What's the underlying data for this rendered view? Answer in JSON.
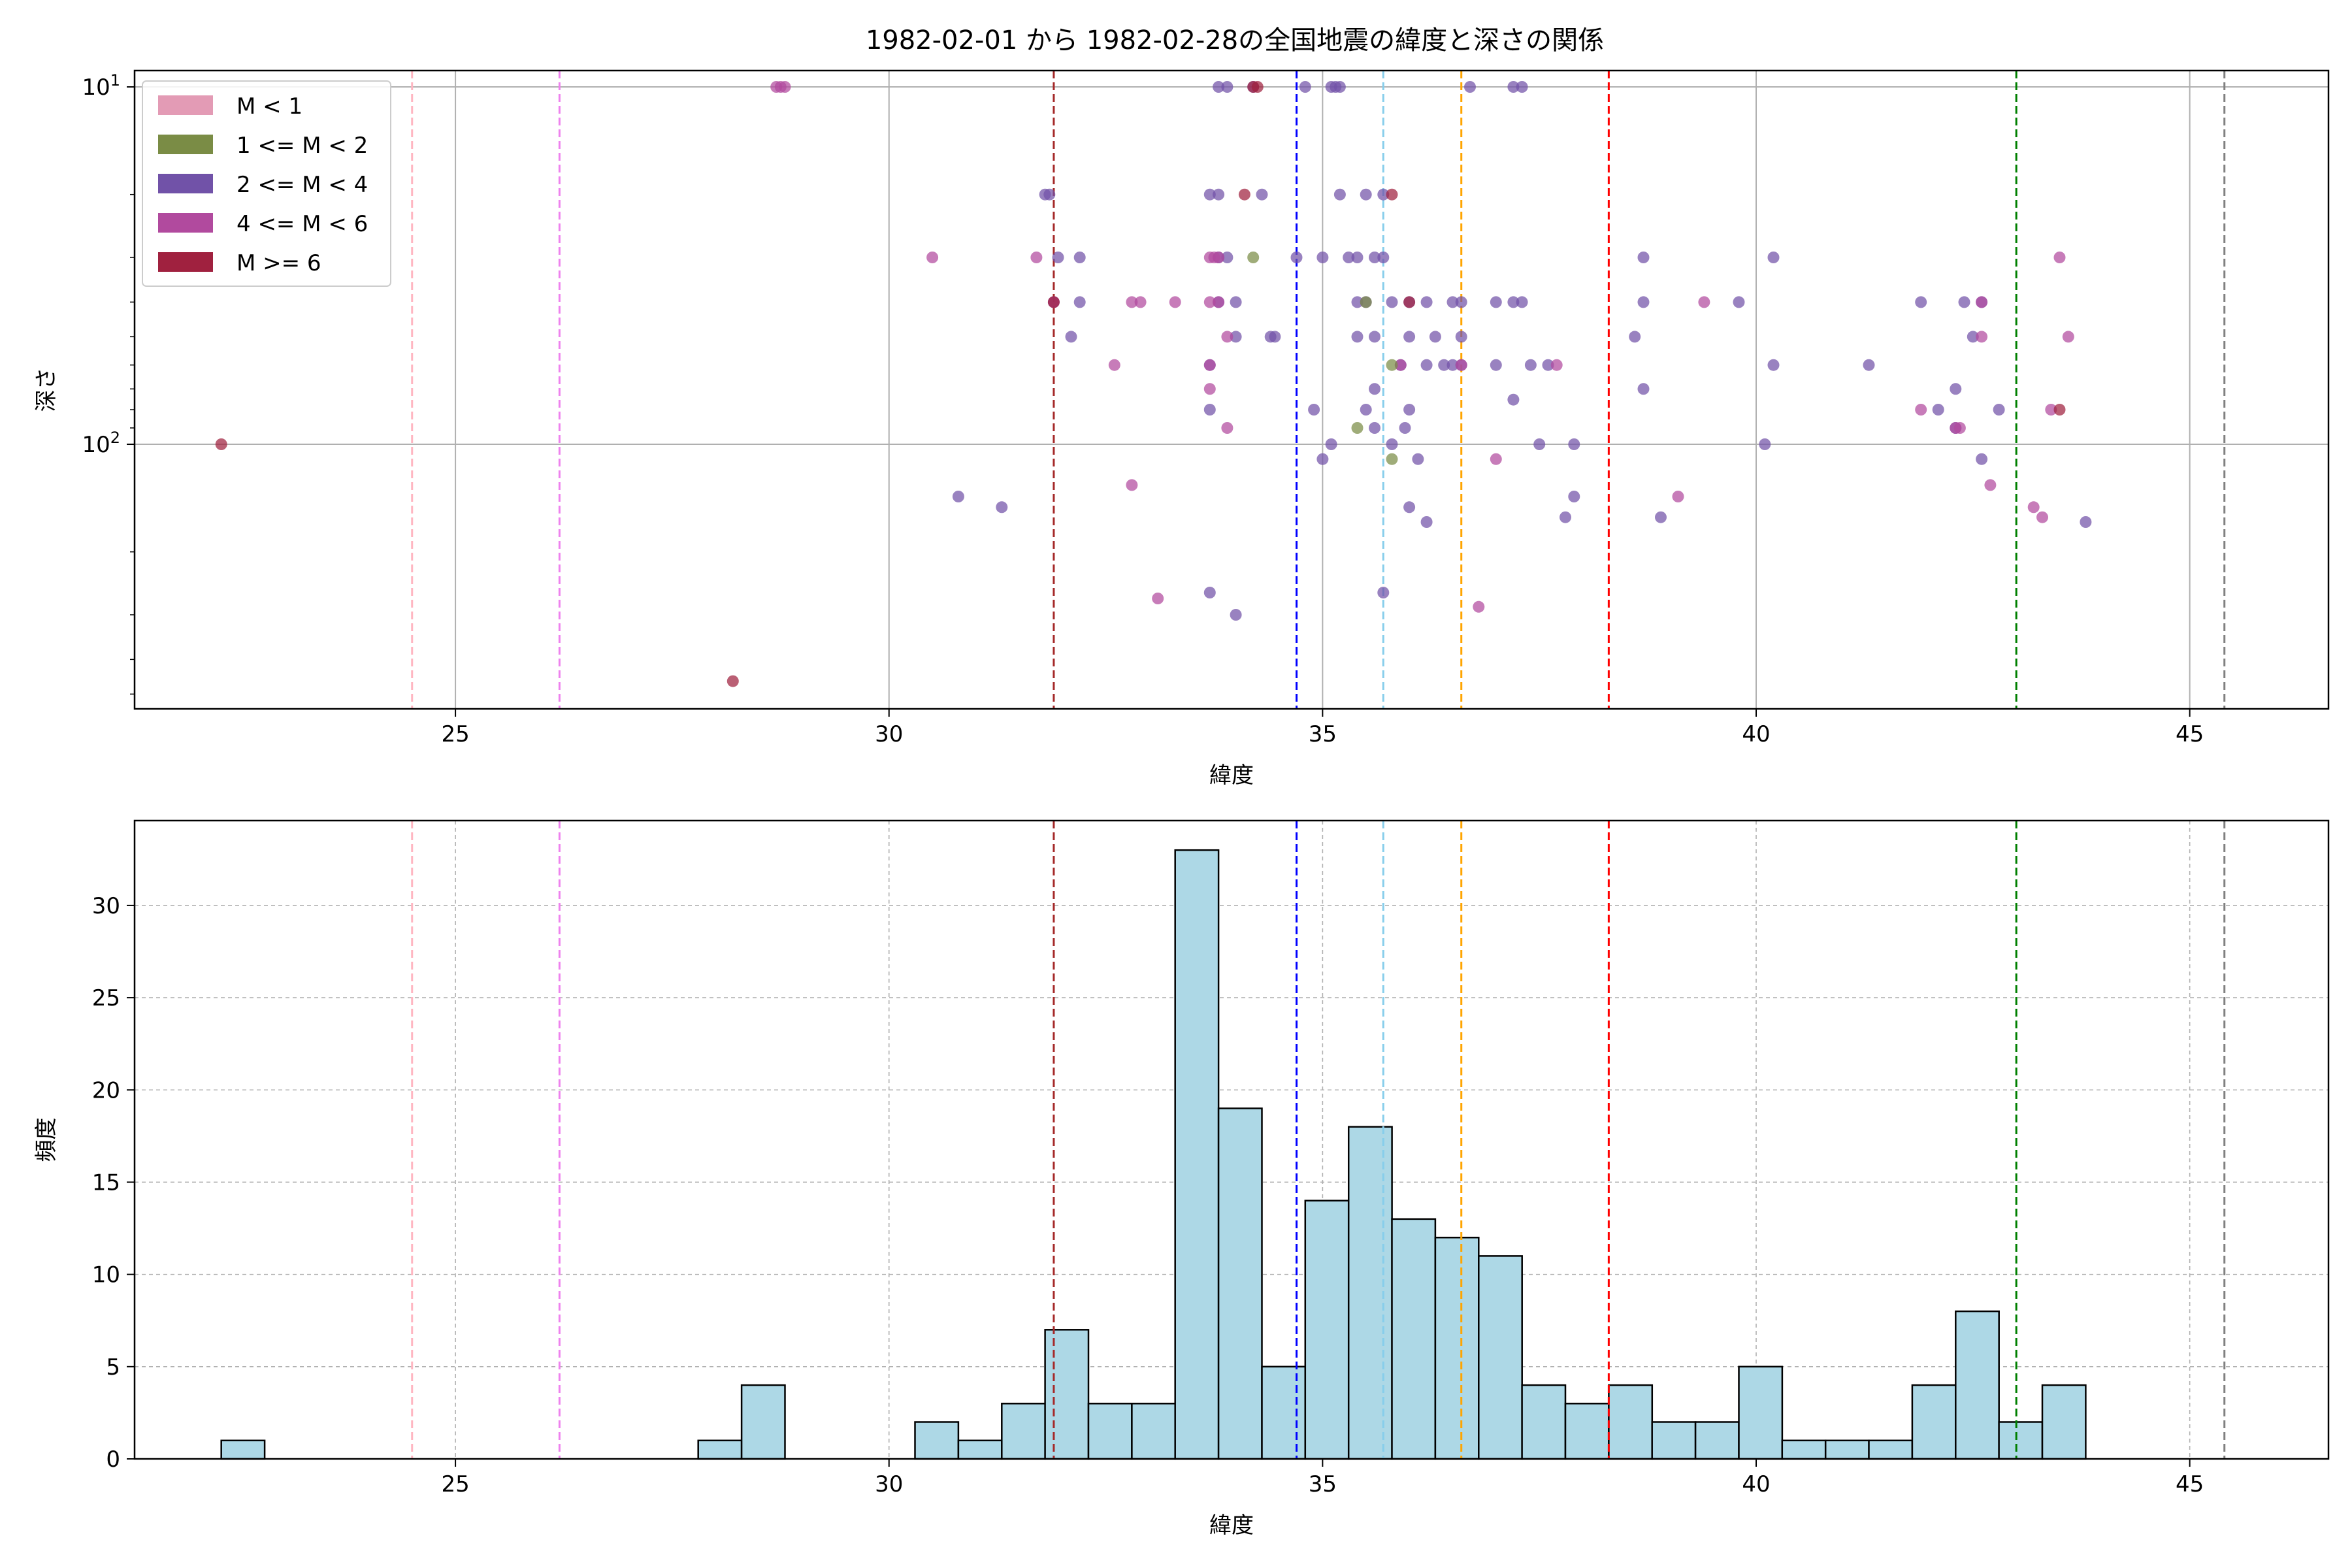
{
  "title": "1982-02-01 から 1982-02-28の全国地震の緯度と深さの関係",
  "legend": {
    "placement": "upper-left",
    "entries": [
      {
        "label": "M < 1",
        "color": "#e39bb5"
      },
      {
        "label": "1 <= M < 2",
        "color": "#7a8c45"
      },
      {
        "label": "2 <= M < 4",
        "color": "#7152a8"
      },
      {
        "label": "4 <= M < 6",
        "color": "#b14a9e"
      },
      {
        "label": "M >= 6",
        "color": "#a0213f"
      }
    ]
  },
  "reference_lines": [
    {
      "x": 24.5,
      "color": "#ffb6c1"
    },
    {
      "x": 26.2,
      "color": "#ee82ee"
    },
    {
      "x": 31.9,
      "color": "#a52a2a"
    },
    {
      "x": 34.7,
      "color": "#0000ff"
    },
    {
      "x": 35.7,
      "color": "#87ceeb"
    },
    {
      "x": 36.6,
      "color": "#ffa500"
    },
    {
      "x": 38.3,
      "color": "#ff0000"
    },
    {
      "x": 43.0,
      "color": "#008000"
    },
    {
      "x": 45.4,
      "color": "#808080"
    }
  ],
  "chart_data": [
    {
      "type": "scatter",
      "title": "1982-02-01 から 1982-02-28の全国地震の緯度と深さの関係",
      "xlabel": "緯度",
      "ylabel": "深さ",
      "xlim": [
        21.3,
        46.6
      ],
      "ylim": [
        550,
        9
      ],
      "yscale": "log",
      "y_inverted": true,
      "x_ticks": [
        25,
        30,
        35,
        40,
        45
      ],
      "y_ticks": [
        {
          "value": 10,
          "label": "10^1"
        },
        {
          "value": 100,
          "label": "10^2"
        }
      ],
      "grid": true,
      "series": [
        {
          "name": "2 <= M < 4",
          "color": "#7152a8",
          "points": [
            [
              33.8,
              10
            ],
            [
              33.9,
              10
            ],
            [
              34.2,
              10
            ],
            [
              34.8,
              10
            ],
            [
              35.1,
              10
            ],
            [
              35.15,
              10
            ],
            [
              35.2,
              10
            ],
            [
              36.7,
              10
            ],
            [
              37.2,
              10
            ],
            [
              37.3,
              10
            ],
            [
              31.8,
              20
            ],
            [
              31.85,
              20
            ],
            [
              33.7,
              20
            ],
            [
              33.8,
              20
            ],
            [
              34.3,
              20
            ],
            [
              35.2,
              20
            ],
            [
              35.5,
              20
            ],
            [
              35.7,
              20
            ],
            [
              31.95,
              30
            ],
            [
              32.2,
              30
            ],
            [
              33.8,
              30
            ],
            [
              33.9,
              30
            ],
            [
              34.7,
              30
            ],
            [
              35.0,
              30
            ],
            [
              35.3,
              30
            ],
            [
              35.4,
              30
            ],
            [
              35.6,
              30
            ],
            [
              35.7,
              30
            ],
            [
              38.7,
              30
            ],
            [
              40.2,
              30
            ],
            [
              31.9,
              40
            ],
            [
              32.2,
              40
            ],
            [
              33.8,
              40
            ],
            [
              34.0,
              40
            ],
            [
              35.4,
              40
            ],
            [
              35.5,
              40
            ],
            [
              35.8,
              40
            ],
            [
              36.0,
              40
            ],
            [
              36.2,
              40
            ],
            [
              36.5,
              40
            ],
            [
              36.6,
              40
            ],
            [
              37.0,
              40
            ],
            [
              37.2,
              40
            ],
            [
              37.3,
              40
            ],
            [
              38.7,
              40
            ],
            [
              39.8,
              40
            ],
            [
              41.9,
              40
            ],
            [
              42.4,
              40
            ],
            [
              42.6,
              40
            ],
            [
              32.1,
              50
            ],
            [
              34.0,
              50
            ],
            [
              34.4,
              50
            ],
            [
              34.45,
              50
            ],
            [
              35.4,
              50
            ],
            [
              35.6,
              50
            ],
            [
              36.0,
              50
            ],
            [
              36.3,
              50
            ],
            [
              36.6,
              50
            ],
            [
              38.6,
              50
            ],
            [
              42.5,
              50
            ],
            [
              33.7,
              60
            ],
            [
              35.9,
              60
            ],
            [
              36.2,
              60
            ],
            [
              36.4,
              60
            ],
            [
              36.5,
              60
            ],
            [
              36.6,
              60
            ],
            [
              37.0,
              60
            ],
            [
              37.4,
              60
            ],
            [
              37.6,
              60
            ],
            [
              40.2,
              60
            ],
            [
              41.3,
              60
            ],
            [
              35.6,
              70
            ],
            [
              38.7,
              70
            ],
            [
              42.3,
              70
            ],
            [
              33.7,
              80
            ],
            [
              34.9,
              80
            ],
            [
              35.5,
              80
            ],
            [
              36.0,
              80
            ],
            [
              42.1,
              80
            ],
            [
              42.8,
              80
            ],
            [
              37.2,
              75
            ],
            [
              35.95,
              90
            ],
            [
              35.6,
              90
            ],
            [
              42.3,
              90
            ],
            [
              35.1,
              100
            ],
            [
              35.8,
              100
            ],
            [
              37.5,
              100
            ],
            [
              37.9,
              100
            ],
            [
              40.1,
              100
            ],
            [
              35.0,
              110
            ],
            [
              36.1,
              110
            ],
            [
              42.6,
              110
            ],
            [
              30.8,
              140
            ],
            [
              31.3,
              150
            ],
            [
              36.0,
              150
            ],
            [
              37.9,
              140
            ],
            [
              38.9,
              160
            ],
            [
              43.8,
              165
            ],
            [
              36.2,
              165
            ],
            [
              37.8,
              160
            ],
            [
              33.7,
              260
            ],
            [
              35.7,
              260
            ],
            [
              34.0,
              300
            ]
          ]
        },
        {
          "name": "4 <= M < 6",
          "color": "#b14a9e",
          "points": [
            [
              28.7,
              10
            ],
            [
              28.75,
              10
            ],
            [
              28.8,
              10
            ],
            [
              30.5,
              30
            ],
            [
              31.7,
              30
            ],
            [
              33.7,
              30
            ],
            [
              33.75,
              30
            ],
            [
              33.8,
              30
            ],
            [
              43.5,
              30
            ],
            [
              31.9,
              40
            ],
            [
              32.8,
              40
            ],
            [
              32.9,
              40
            ],
            [
              33.3,
              40
            ],
            [
              33.7,
              40
            ],
            [
              33.8,
              40
            ],
            [
              39.4,
              40
            ],
            [
              42.6,
              40
            ],
            [
              33.9,
              50
            ],
            [
              42.6,
              50
            ],
            [
              43.6,
              50
            ],
            [
              32.6,
              60
            ],
            [
              33.7,
              60
            ],
            [
              35.9,
              60
            ],
            [
              36.6,
              60
            ],
            [
              37.7,
              60
            ],
            [
              33.7,
              70
            ],
            [
              41.9,
              80
            ],
            [
              43.4,
              80
            ],
            [
              33.9,
              90
            ],
            [
              42.3,
              90
            ],
            [
              42.35,
              90
            ],
            [
              37.0,
              110
            ],
            [
              42.7,
              130
            ],
            [
              32.8,
              130
            ],
            [
              39.1,
              140
            ],
            [
              43.2,
              150
            ],
            [
              43.3,
              160
            ],
            [
              33.1,
              270
            ],
            [
              36.8,
              285
            ]
          ]
        },
        {
          "name": "1 <= M < 2",
          "color": "#7a8c45",
          "points": [
            [
              34.2,
              30
            ],
            [
              35.5,
              40
            ],
            [
              35.8,
              60
            ],
            [
              35.4,
              90
            ],
            [
              35.8,
              110
            ]
          ]
        },
        {
          "name": "M >= 6",
          "color": "#a0213f",
          "points": [
            [
              34.2,
              10
            ],
            [
              34.25,
              10
            ],
            [
              34.1,
              20
            ],
            [
              35.8,
              20
            ],
            [
              31.9,
              40
            ],
            [
              36.0,
              40
            ],
            [
              43.5,
              80
            ],
            [
              22.3,
              100
            ],
            [
              28.2,
              460
            ]
          ]
        },
        {
          "name": "M < 1",
          "color": "#e39bb5",
          "points": []
        }
      ]
    },
    {
      "type": "bar",
      "subtype": "histogram",
      "xlabel": "緯度",
      "ylabel": "頻度",
      "xlim": [
        21.3,
        46.6
      ],
      "ylim": [
        0,
        34.6
      ],
      "x_ticks": [
        25,
        30,
        35,
        40,
        45
      ],
      "y_ticks": [
        0,
        5,
        10,
        15,
        20,
        25,
        30
      ],
      "grid": true,
      "bin_width": 0.5,
      "bar_color": "#add8e6",
      "bins": [
        {
          "start": 22.3,
          "count": 1
        },
        {
          "start": 27.8,
          "count": 1
        },
        {
          "start": 28.3,
          "count": 4
        },
        {
          "start": 30.3,
          "count": 2
        },
        {
          "start": 30.8,
          "count": 1
        },
        {
          "start": 31.3,
          "count": 3
        },
        {
          "start": 31.8,
          "count": 7
        },
        {
          "start": 32.3,
          "count": 3
        },
        {
          "start": 32.8,
          "count": 3
        },
        {
          "start": 33.3,
          "count": 33
        },
        {
          "start": 33.8,
          "count": 19
        },
        {
          "start": 34.3,
          "count": 5
        },
        {
          "start": 34.8,
          "count": 14
        },
        {
          "start": 35.3,
          "count": 18
        },
        {
          "start": 35.8,
          "count": 13
        },
        {
          "start": 36.3,
          "count": 12
        },
        {
          "start": 36.8,
          "count": 11
        },
        {
          "start": 37.3,
          "count": 4
        },
        {
          "start": 37.8,
          "count": 3
        },
        {
          "start": 38.3,
          "count": 4
        },
        {
          "start": 38.8,
          "count": 2
        },
        {
          "start": 39.3,
          "count": 2
        },
        {
          "start": 39.8,
          "count": 5
        },
        {
          "start": 40.3,
          "count": 1
        },
        {
          "start": 40.8,
          "count": 1
        },
        {
          "start": 41.3,
          "count": 1
        },
        {
          "start": 41.8,
          "count": 4
        },
        {
          "start": 42.3,
          "count": 8
        },
        {
          "start": 42.8,
          "count": 2
        },
        {
          "start": 43.3,
          "count": 4
        }
      ]
    }
  ]
}
